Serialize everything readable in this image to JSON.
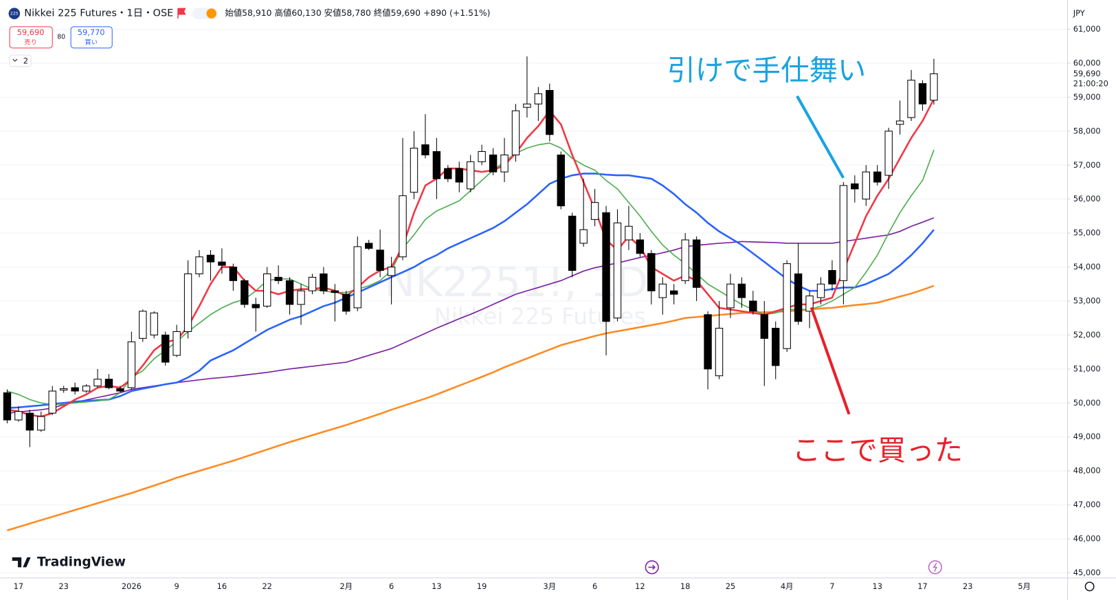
{
  "header": {
    "symbol": "Nikkei 225 Futures・1日・OSE",
    "icon": "225",
    "ohlc": "始値58,910 高値60,130 安値58,780 終値59,690 +890 (+1.51%)",
    "sell_price": "59,690",
    "sell_label": "売り",
    "spread": "80",
    "buy_price": "59,770",
    "buy_label": "買い",
    "indicators": "2",
    "watermark": "NK2251!, 1D",
    "watermark_sub": "Nikkei 225 Futures",
    "currency": "JPY",
    "branding": "TradingView"
  },
  "chart_data": {
    "type": "candlestick",
    "annotations": [
      {
        "text": "引けで手仕舞い",
        "color": "#1aa3e0"
      },
      {
        "text": "ここで買った",
        "color": "#e8202a"
      }
    ],
    "categories": [
      null,
      "17",
      null,
      null,
      null,
      "23",
      null,
      null,
      null,
      null,
      null,
      "2026",
      null,
      null,
      null,
      "9",
      null,
      null,
      null,
      "16",
      null,
      null,
      null,
      "22",
      null,
      null,
      null,
      null,
      null,
      null,
      "2月",
      null,
      null,
      null,
      "6",
      null,
      null,
      null,
      "13",
      null,
      null,
      null,
      "19",
      null,
      null,
      null,
      null,
      null,
      "3月",
      null,
      null,
      null,
      "6",
      null,
      null,
      null,
      "12",
      null,
      null,
      null,
      "18",
      null,
      null,
      null,
      "25",
      null,
      null,
      null,
      null,
      "4月",
      null,
      null,
      null,
      "7",
      null,
      null,
      null,
      "13",
      null,
      null,
      null,
      "17",
      null,
      null,
      null,
      "23",
      null,
      null,
      null,
      null,
      "5月",
      null,
      null,
      null
    ],
    "open": [
      50300,
      49500,
      49700,
      49200,
      49700,
      50380,
      50450,
      50350,
      50500,
      50700,
      50420,
      50450,
      51900,
      52000,
      52000,
      51400,
      52100,
      53800,
      54350,
      54150,
      54000,
      53600,
      52900,
      52850,
      53700,
      53600,
      52900,
      53300,
      53800,
      53300,
      53200,
      52800,
      54700,
      54500,
      53750,
      54300,
      56200,
      57600,
      57400,
      56900,
      56900,
      56300,
      57100,
      57300,
      56800,
      57300,
      58700,
      58800,
      59200,
      57300,
      55500,
      54700,
      55400,
      55600,
      52500,
      54800,
      54800,
      54400,
      53100,
      53300,
      53600,
      54800,
      52600,
      50800,
      52800,
      53500,
      53000,
      52600,
      52200,
      51600,
      53800,
      52700,
      53100,
      53900,
      53600,
      56450,
      56000,
      56800,
      56700,
      58200,
      58400,
      59400,
      58910,
      null,
      null,
      null,
      null,
      null,
      null,
      null,
      null,
      null,
      null,
      null
    ],
    "high": [
      50400,
      49900,
      49800,
      49750,
      50500,
      50500,
      50600,
      50550,
      51000,
      50850,
      50500,
      52100,
      52750,
      52700,
      52100,
      52300,
      54200,
      54500,
      54500,
      54550,
      54100,
      53650,
      53100,
      54000,
      54050,
      53700,
      53500,
      53800,
      54000,
      53500,
      53300,
      54900,
      54800,
      55100,
      54300,
      57800,
      58000,
      58500,
      57800,
      57000,
      57100,
      57300,
      57600,
      57500,
      57800,
      58800,
      60200,
      59300,
      59400,
      57400,
      55600,
      56600,
      56300,
      55800,
      55700,
      55800,
      55000,
      54500,
      53700,
      53500,
      55000,
      54900,
      52700,
      53000,
      53800,
      53700,
      53300,
      53000,
      52400,
      54200,
      54700,
      53300,
      53700,
      54200,
      56500,
      56700,
      57000,
      57000,
      58100,
      58900,
      59800,
      59500,
      60130,
      null,
      null,
      null,
      null,
      null,
      null,
      null,
      null,
      null,
      null,
      null
    ],
    "low": [
      49400,
      49450,
      48700,
      49150,
      49650,
      50300,
      50250,
      50300,
      50450,
      50400,
      50300,
      50400,
      51800,
      51900,
      51100,
      51350,
      51900,
      53700,
      53600,
      53800,
      53300,
      52800,
      52100,
      52800,
      53500,
      52600,
      52300,
      53200,
      53200,
      52400,
      52600,
      52700,
      54500,
      53700,
      52900,
      54200,
      56000,
      57200,
      56000,
      56500,
      56200,
      56200,
      57000,
      56700,
      56500,
      57100,
      58400,
      58300,
      57700,
      55700,
      53700,
      54600,
      55200,
      51400,
      52400,
      54500,
      54300,
      52900,
      52600,
      52900,
      53500,
      53000,
      50400,
      50700,
      52500,
      52800,
      52600,
      50500,
      50700,
      51500,
      52300,
      52200,
      52900,
      53300,
      52900,
      55900,
      55800,
      56400,
      56300,
      57900,
      58300,
      58600,
      58780,
      null,
      null,
      null,
      null,
      null,
      null,
      null,
      null,
      null,
      null,
      null
    ],
    "close": [
      49500,
      49750,
      49200,
      49600,
      50350,
      50420,
      50350,
      50500,
      50700,
      50450,
      50350,
      51800,
      52700,
      52650,
      51200,
      52100,
      53800,
      54300,
      54150,
      54050,
      53600,
      52900,
      52800,
      53800,
      53600,
      52900,
      53300,
      53700,
      53300,
      53250,
      52700,
      54600,
      54550,
      53900,
      54000,
      56100,
      57500,
      57300,
      56600,
      56600,
      56500,
      57100,
      57400,
      56800,
      57300,
      58600,
      58800,
      59100,
      57900,
      55800,
      53900,
      55100,
      55900,
      52400,
      55300,
      55200,
      54400,
      53300,
      53500,
      53200,
      54800,
      53400,
      51000,
      52200,
      53500,
      53100,
      52700,
      51900,
      51100,
      54100,
      52400,
      53150,
      53500,
      53500,
      56400,
      56300,
      56800,
      56500,
      58000,
      58300,
      59500,
      58800,
      59690,
      null,
      null,
      null,
      null,
      null,
      null,
      null,
      null,
      null,
      null,
      null
    ],
    "up_color": "#ffffff",
    "down_color": "#000000",
    "moving_averages": [
      {
        "color": "#ff8a1f",
        "values": [
          46250,
          46350,
          46450,
          46550,
          46650,
          46750,
          46850,
          46950,
          47050,
          47150,
          47250,
          47350,
          47460,
          47570,
          47680,
          47800,
          47900,
          48000,
          48100,
          48200,
          48300,
          48410,
          48520,
          48630,
          48740,
          48850,
          48950,
          49050,
          49150,
          49250,
          49350,
          49460,
          49570,
          49680,
          49800,
          49910,
          50020,
          50130,
          50250,
          50380,
          50510,
          50640,
          50770,
          50900,
          51050,
          51180,
          51310,
          51440,
          51570,
          51700,
          51790,
          51880,
          51970,
          52050,
          52110,
          52170,
          52230,
          52290,
          52350,
          52420,
          52500,
          52530,
          52560,
          52590,
          52620,
          52650,
          52660,
          52670,
          52680,
          52700,
          52720,
          52750,
          52780,
          52800,
          52840,
          52880,
          52910,
          52950,
          53040,
          53130,
          53220,
          53330,
          53450,
          null,
          null,
          null,
          null,
          null,
          null,
          null,
          null,
          null,
          null,
          null
        ]
      },
      {
        "color": "#7b1fa2",
        "values": [
          49700,
          49730,
          49770,
          49800,
          49850,
          49950,
          50020,
          50090,
          50160,
          50230,
          50300,
          50400,
          50450,
          50500,
          50550,
          50600,
          50640,
          50680,
          50720,
          50750,
          50780,
          50820,
          50860,
          50900,
          50950,
          51000,
          51040,
          51080,
          51120,
          51160,
          51200,
          51300,
          51400,
          51500,
          51600,
          51750,
          51900,
          52050,
          52200,
          52340,
          52480,
          52610,
          52750,
          52900,
          53050,
          53200,
          53300,
          53400,
          53500,
          53600,
          53740,
          53880,
          53980,
          54050,
          54120,
          54200,
          54280,
          54350,
          54420,
          54500,
          54600,
          54640,
          54670,
          54700,
          54720,
          54750,
          54740,
          54730,
          54720,
          54700,
          54700,
          54700,
          54700,
          54700,
          54750,
          54800,
          54850,
          54900,
          54950,
          55050,
          55200,
          55320,
          55450,
          null,
          null,
          null,
          null,
          null,
          null,
          null,
          null,
          null,
          null,
          null
        ]
      },
      {
        "color": "#2962ff",
        "values": [
          49850,
          49870,
          49900,
          49930,
          49970,
          50000,
          50040,
          50060,
          50080,
          50100,
          50200,
          50350,
          50420,
          50480,
          50550,
          50600,
          50750,
          50950,
          51250,
          51400,
          51550,
          51750,
          51950,
          52150,
          52300,
          52450,
          52550,
          52700,
          52850,
          52950,
          53100,
          53250,
          53400,
          53550,
          53700,
          53850,
          54000,
          54200,
          54350,
          54550,
          54700,
          54850,
          55000,
          55150,
          55350,
          55600,
          55850,
          56150,
          56450,
          56600,
          56700,
          56750,
          56750,
          56720,
          56700,
          56700,
          56650,
          56600,
          56400,
          56150,
          55850,
          55600,
          55300,
          55050,
          54850,
          54650,
          54400,
          54150,
          53900,
          53650,
          53450,
          53300,
          53300,
          53350,
          53400,
          53400,
          53500,
          53650,
          53800,
          54050,
          54350,
          54700,
          55100,
          null,
          null,
          null,
          null,
          null,
          null,
          null,
          null,
          null,
          null,
          null
        ]
      },
      {
        "color": "#4caf50",
        "values": [
          50350,
          50250,
          50100,
          50000,
          49950,
          49970,
          50000,
          50030,
          50060,
          50100,
          50300,
          50750,
          50950,
          51300,
          51550,
          51800,
          52100,
          52350,
          52600,
          52800,
          52950,
          53050,
          53300,
          53600,
          53650,
          53650,
          53500,
          53350,
          53300,
          53250,
          53250,
          53350,
          53450,
          53600,
          53900,
          54550,
          54950,
          55400,
          55650,
          55800,
          55950,
          56250,
          56550,
          56850,
          57100,
          57350,
          57500,
          57600,
          57650,
          57500,
          57200,
          57000,
          56850,
          56550,
          56300,
          55900,
          55500,
          55050,
          54650,
          54350,
          54100,
          53800,
          53500,
          53300,
          53100,
          52900,
          52750,
          52600,
          52650,
          52750,
          52750,
          52750,
          52850,
          53000,
          53200,
          53400,
          53850,
          54350,
          55000,
          55600,
          56100,
          56550,
          57450,
          null,
          null,
          null,
          null,
          null,
          null,
          null,
          null,
          null,
          null,
          null
        ]
      },
      {
        "color": "#f23645",
        "values": [
          49800,
          49750,
          49650,
          49600,
          49700,
          49900,
          50100,
          50250,
          50450,
          50500,
          50450,
          50700,
          51100,
          51550,
          51800,
          51850,
          52250,
          52850,
          53500,
          54000,
          54000,
          53600,
          53300,
          53300,
          53200,
          53300,
          53350,
          53350,
          53400,
          53300,
          53150,
          53400,
          53700,
          53900,
          54000,
          54600,
          55600,
          56400,
          56600,
          56900,
          56900,
          56850,
          56800,
          56850,
          57000,
          57350,
          57800,
          58150,
          58600,
          58200,
          57300,
          56500,
          55700,
          54800,
          54500,
          54900,
          54600,
          54000,
          53800,
          53600,
          53750,
          53600,
          53200,
          52800,
          52750,
          52700,
          52650,
          52600,
          52700,
          52800,
          52900,
          52900,
          53000,
          53100,
          53900,
          54700,
          55500,
          56100,
          56600,
          57200,
          57800,
          58300,
          58950,
          null,
          null,
          null,
          null,
          null,
          null,
          null,
          null,
          null,
          null,
          null
        ]
      }
    ],
    "ylim": [
      44850,
      61860
    ],
    "yticks": [
      {
        "value": 45000,
        "label": "45,000"
      },
      {
        "value": 46000,
        "label": "46,000"
      },
      {
        "value": 47000,
        "label": "47,000"
      },
      {
        "value": 48000,
        "label": "48,000"
      },
      {
        "value": 49000,
        "label": "49,000"
      },
      {
        "value": 50000,
        "label": "50,000"
      },
      {
        "value": 51000,
        "label": "51,000"
      },
      {
        "value": 52000,
        "label": "52,000"
      },
      {
        "value": 53000,
        "label": "53,000"
      },
      {
        "value": 54000,
        "label": "54,000"
      },
      {
        "value": 55000,
        "label": "55,000"
      },
      {
        "value": 56000,
        "label": "56,000"
      },
      {
        "value": 57000,
        "label": "57,000"
      },
      {
        "value": 58000,
        "label": "58,000"
      },
      {
        "value": 59000,
        "label": "59,000"
      },
      {
        "value": 60000,
        "label": "60,000"
      },
      {
        "value": 61000,
        "label": "61,000"
      }
    ],
    "grid": true,
    "last_price": {
      "value": 59690,
      "label": "59,690"
    },
    "countdown": "21:00:20"
  }
}
